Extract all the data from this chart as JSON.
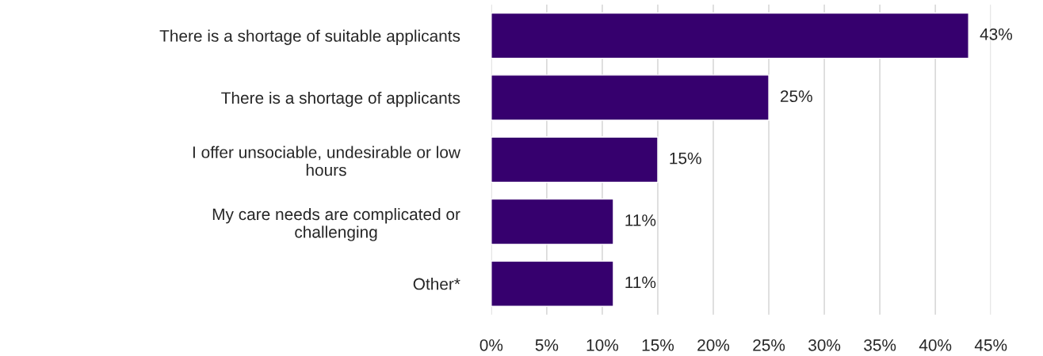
{
  "chart_data": {
    "type": "bar",
    "orientation": "horizontal",
    "categories": [
      "There is a shortage of suitable applicants",
      "There is a shortage of applicants",
      "I offer unsociable, undesirable or low\nhours",
      "My care needs are complicated or\nchallenging",
      "Other*"
    ],
    "values": [
      43,
      25,
      15,
      11,
      11
    ],
    "value_labels": [
      "43%",
      "25%",
      "15%",
      "11%",
      "11%"
    ],
    "color": "#36006e",
    "xlim": [
      0,
      45
    ],
    "xticks": [
      {
        "value": 0,
        "label": "0%"
      },
      {
        "value": 5,
        "label": "5%"
      },
      {
        "value": 10,
        "label": "10%"
      },
      {
        "value": 15,
        "label": "15%"
      },
      {
        "value": 20,
        "label": "20%"
      },
      {
        "value": 25,
        "label": "25%"
      },
      {
        "value": 30,
        "label": "30%"
      },
      {
        "value": 35,
        "label": "35%"
      },
      {
        "value": 40,
        "label": "40%"
      },
      {
        "value": 45,
        "label": "45%"
      }
    ],
    "grid": "x"
  }
}
